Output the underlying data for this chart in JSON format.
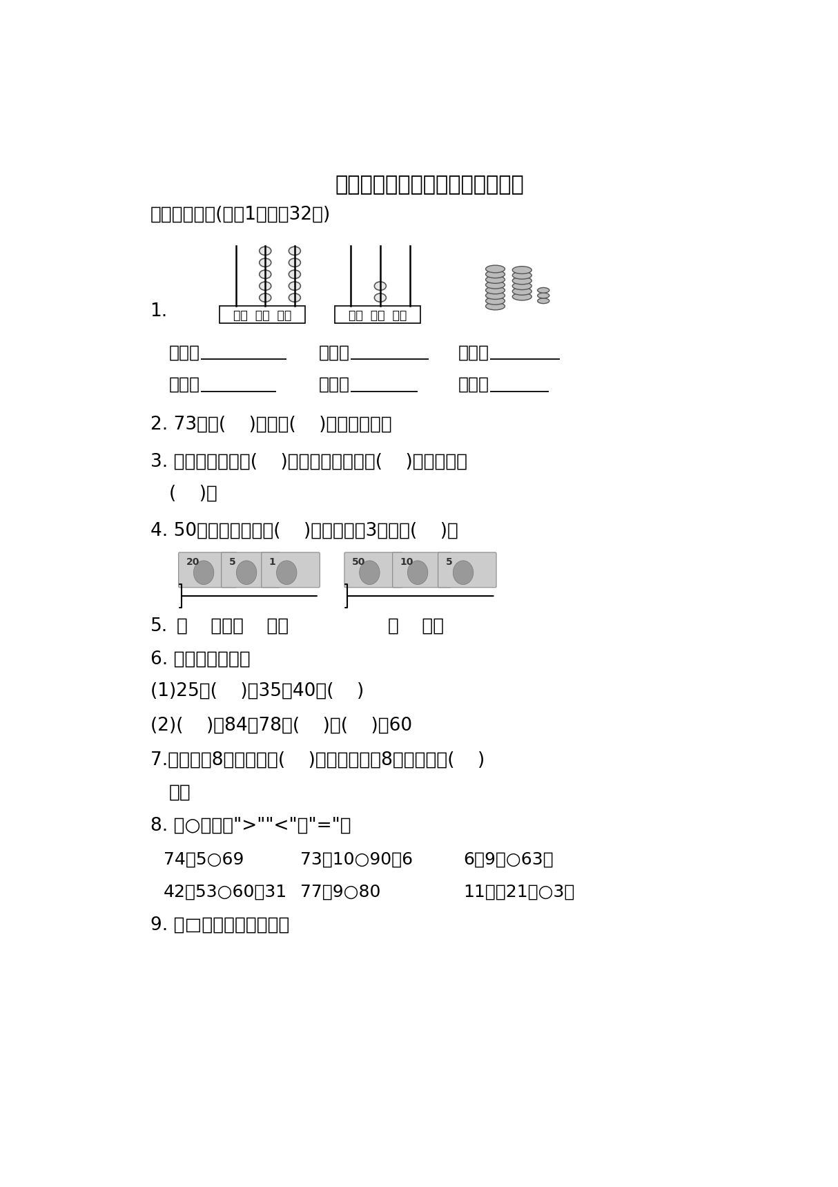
{
  "title": "模块过关卷（一）数与代数、统计",
  "bg_color": "#ffffff",
  "section1": "一、我会填。(每空1分，共32分)",
  "q2": "2. 73是由(    )个十和(    )个一组成的。",
  "q3_line1": "3. 最小的两位数是(    )，最大的两位数是(    )，它们相差",
  "q3_line2": "(    )。",
  "q4": "4. 50前面的一个数是(    )，后面的第3个数是(    )。",
  "q5_label": "5.",
  "q5_text1": "（    ）元（    ）角",
  "q5_text2": "（    ）元",
  "q6_title": "6. 找规律填一填。",
  "q6_1": "(1)25、(    )、35、40、(    )",
  "q6_2": "(2)(    )、84、78、(    )、(    )、60",
  "q7_line1": "7.个位上是8的两位数有(    )个，十位上是8的两位数有(    )",
  "q7_line2": "个。",
  "q8_title": "8. 在○里填上\">\"\"<\"或\"=\"。",
  "q8_r1c1": "74－5○69",
  "q8_r1c2": "73＋10○90－6",
  "q8_r1c3": "6元9角○63角",
  "q8_r2c1": "42＋53○60＋31",
  "q8_r2c2": "77＋9○80",
  "q8_r2c3": "11角＋21角○3元",
  "q9": "9. 在□里填上合适的数。"
}
